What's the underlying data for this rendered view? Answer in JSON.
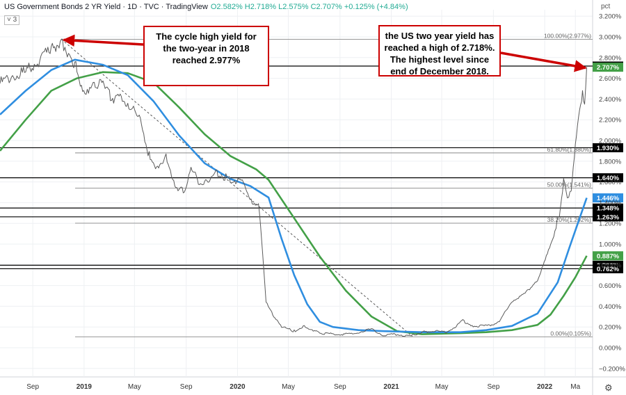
{
  "header": {
    "title": "US Government Bonds 2 YR Yield · 1D · TVC · TradingView",
    "ohlc": "O2.582% H2.718% L2.575% C2.707% +0.125% (+4.84%)",
    "collapse": "˅ 3",
    "unit": "pct"
  },
  "annotations": {
    "callout_left": "The cycle high yield for the two-year in 2018 reached 2.977%",
    "callout_right": "the US two year yield has reached a high of 2.718%. The highest level since end of December 2018."
  },
  "colors": {
    "price": "#5a5a5a",
    "ma_blue": "#2f8ee0",
    "ma_green": "#43a047",
    "callout": "#cc0000",
    "price_badge": "#000000"
  },
  "chart_data": {
    "type": "line",
    "title": "US Government Bonds 2 YR Yield",
    "ylabel": "pct",
    "ylim": [
      -0.1,
      3.25
    ],
    "x_tick_labels": [
      "Sep",
      "2019",
      "May",
      "Sep",
      "2020",
      "May",
      "Sep",
      "2021",
      "May",
      "Sep",
      "2022",
      "Ma"
    ],
    "y_tick_labels": [
      "3.200%",
      "3.000%",
      "2.800%",
      "2.600%",
      "2.400%",
      "2.200%",
      "2.000%",
      "1.800%",
      "1.600%",
      "1.400%",
      "1.200%",
      "1.000%",
      "0.800%",
      "0.600%",
      "0.400%",
      "0.200%",
      "0.000%",
      "−0.200%"
    ],
    "y_tick_values": [
      3.2,
      3.0,
      2.8,
      2.6,
      2.4,
      2.2,
      2.0,
      1.8,
      1.6,
      1.4,
      1.2,
      1.0,
      0.8,
      0.6,
      0.4,
      0.2,
      0.0,
      -0.2
    ],
    "series": [
      {
        "role": "price",
        "values": [
          [
            "2018-06-15",
            2.55
          ],
          [
            "2018-07-15",
            2.62
          ],
          [
            "2018-08-15",
            2.65
          ],
          [
            "2018-09-15",
            2.78
          ],
          [
            "2018-10-15",
            2.88
          ],
          [
            "2018-11-08",
            2.977
          ],
          [
            "2018-11-25",
            2.85
          ],
          [
            "2018-12-15",
            2.72
          ],
          [
            "2019-01-03",
            2.4
          ],
          [
            "2019-01-20",
            2.58
          ],
          [
            "2019-02-15",
            2.52
          ],
          [
            "2019-03-15",
            2.4
          ],
          [
            "2019-04-15",
            2.38
          ],
          [
            "2019-05-15",
            2.18
          ],
          [
            "2019-06-05",
            1.85
          ],
          [
            "2019-06-25",
            1.74
          ],
          [
            "2019-07-15",
            1.86
          ],
          [
            "2019-08-05",
            1.58
          ],
          [
            "2019-08-25",
            1.5
          ],
          [
            "2019-09-15",
            1.74
          ],
          [
            "2019-09-30",
            1.6
          ],
          [
            "2019-10-15",
            1.6
          ],
          [
            "2019-11-08",
            1.68
          ],
          [
            "2019-12-15",
            1.63
          ],
          [
            "2020-01-15",
            1.58
          ],
          [
            "2020-02-05",
            1.42
          ],
          [
            "2020-02-20",
            1.38
          ],
          [
            "2020-03-01",
            0.92
          ],
          [
            "2020-03-09",
            0.45
          ],
          [
            "2020-03-25",
            0.32
          ],
          [
            "2020-04-15",
            0.2
          ],
          [
            "2020-05-15",
            0.16
          ],
          [
            "2020-06-08",
            0.21
          ],
          [
            "2020-07-15",
            0.14
          ],
          [
            "2020-08-15",
            0.13
          ],
          [
            "2020-09-15",
            0.13
          ],
          [
            "2020-10-15",
            0.15
          ],
          [
            "2020-11-15",
            0.18
          ],
          [
            "2020-12-15",
            0.12
          ],
          [
            "2021-01-15",
            0.13
          ],
          [
            "2021-02-15",
            0.11
          ],
          [
            "2021-03-15",
            0.15
          ],
          [
            "2021-04-15",
            0.16
          ],
          [
            "2021-05-15",
            0.15
          ],
          [
            "2021-06-20",
            0.26
          ],
          [
            "2021-07-15",
            0.21
          ],
          [
            "2021-08-15",
            0.21
          ],
          [
            "2021-09-15",
            0.25
          ],
          [
            "2021-10-15",
            0.45
          ],
          [
            "2021-11-15",
            0.52
          ],
          [
            "2021-12-15",
            0.66
          ],
          [
            "2022-01-05",
            0.87
          ],
          [
            "2022-01-20",
            1.05
          ],
          [
            "2022-02-05",
            1.3
          ],
          [
            "2022-02-15",
            1.6
          ],
          [
            "2022-02-24",
            1.44
          ],
          [
            "2022-03-05",
            1.55
          ],
          [
            "2022-03-15",
            1.95
          ],
          [
            "2022-03-25",
            2.3
          ],
          [
            "2022-04-01",
            2.44
          ],
          [
            "2022-04-06",
            2.4
          ],
          [
            "2022-04-11",
            2.707
          ]
        ]
      },
      {
        "role": "ma_blue",
        "values": [
          [
            "2018-06-15",
            2.25
          ],
          [
            "2018-08-15",
            2.48
          ],
          [
            "2018-10-15",
            2.68
          ],
          [
            "2018-12-10",
            2.78
          ],
          [
            "2019-02-15",
            2.73
          ],
          [
            "2019-04-15",
            2.63
          ],
          [
            "2019-06-15",
            2.38
          ],
          [
            "2019-08-15",
            2.05
          ],
          [
            "2019-10-15",
            1.78
          ],
          [
            "2019-12-15",
            1.63
          ],
          [
            "2020-02-01",
            1.56
          ],
          [
            "2020-03-15",
            1.45
          ],
          [
            "2020-04-15",
            1.05
          ],
          [
            "2020-05-15",
            0.7
          ],
          [
            "2020-06-15",
            0.42
          ],
          [
            "2020-07-15",
            0.25
          ],
          [
            "2020-08-15",
            0.2
          ],
          [
            "2020-10-15",
            0.17
          ],
          [
            "2020-12-15",
            0.16
          ],
          [
            "2021-03-15",
            0.15
          ],
          [
            "2021-06-15",
            0.15
          ],
          [
            "2021-08-15",
            0.17
          ],
          [
            "2021-10-15",
            0.21
          ],
          [
            "2021-12-15",
            0.33
          ],
          [
            "2022-02-01",
            0.63
          ],
          [
            "2022-03-01",
            0.97
          ],
          [
            "2022-03-25",
            1.25
          ],
          [
            "2022-04-11",
            1.446
          ]
        ]
      },
      {
        "role": "ma_green",
        "values": [
          [
            "2018-06-15",
            1.9
          ],
          [
            "2018-08-15",
            2.2
          ],
          [
            "2018-10-15",
            2.48
          ],
          [
            "2018-12-15",
            2.6
          ],
          [
            "2019-02-15",
            2.66
          ],
          [
            "2019-04-15",
            2.65
          ],
          [
            "2019-06-15",
            2.56
          ],
          [
            "2019-08-15",
            2.32
          ],
          [
            "2019-10-15",
            2.06
          ],
          [
            "2019-12-15",
            1.85
          ],
          [
            "2020-02-15",
            1.72
          ],
          [
            "2020-03-15",
            1.62
          ],
          [
            "2020-05-15",
            1.25
          ],
          [
            "2020-07-15",
            0.88
          ],
          [
            "2020-09-15",
            0.55
          ],
          [
            "2020-11-15",
            0.3
          ],
          [
            "2021-01-15",
            0.16
          ],
          [
            "2021-03-15",
            0.13
          ],
          [
            "2021-06-15",
            0.14
          ],
          [
            "2021-08-15",
            0.15
          ],
          [
            "2021-10-15",
            0.17
          ],
          [
            "2021-12-15",
            0.22
          ],
          [
            "2022-01-15",
            0.32
          ],
          [
            "2022-02-15",
            0.5
          ],
          [
            "2022-03-15",
            0.68
          ],
          [
            "2022-04-11",
            0.887
          ]
        ]
      }
    ],
    "trendline": [
      [
        "2018-11-08",
        2.977
      ],
      [
        "2021-02-20",
        0.11
      ]
    ],
    "fib_levels": [
      {
        "value": 2.977,
        "label": "100.00%(2.977%)"
      },
      {
        "value": 1.88,
        "label": "61.80%(1.880%)"
      },
      {
        "value": 1.541,
        "label": "50.00%(1.541%)"
      },
      {
        "value": 1.202,
        "label": "38.20%(1.202%)"
      },
      {
        "value": 0.105,
        "label": "0.00%(0.105%)"
      }
    ],
    "horizontal_levels": [
      {
        "value": 2.718,
        "label": "2.718%"
      },
      {
        "value": 1.93,
        "label": "1.930%"
      },
      {
        "value": 1.64,
        "label": "1.640%"
      },
      {
        "value": 1.348,
        "label": "1.348%"
      },
      {
        "value": 1.263,
        "label": "1.263%"
      },
      {
        "value": 0.796,
        "label": "0.796%"
      },
      {
        "value": 0.762,
        "label": "0.762%"
      }
    ],
    "price_badges": [
      {
        "value": 2.707,
        "label": "2.707%",
        "color": "#43a047"
      },
      {
        "value": 1.446,
        "label": "1.446%",
        "color": "#2f8ee0"
      },
      {
        "value": 0.887,
        "label": "0.887%",
        "color": "#43a047"
      }
    ]
  }
}
